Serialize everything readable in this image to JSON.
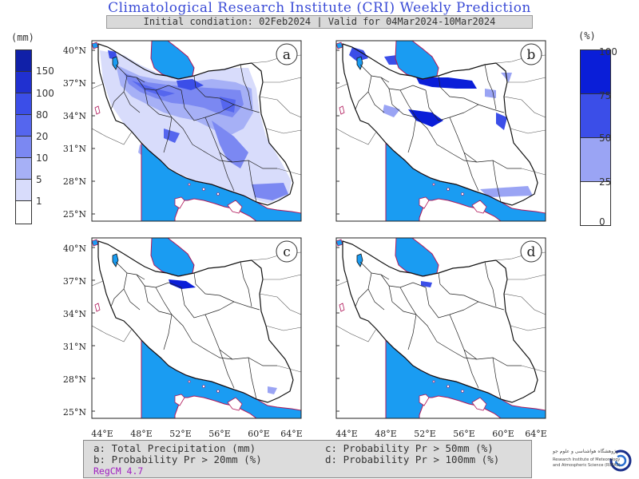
{
  "header": {
    "title": "Climatological Research Institute (CRI) Weekly Prediction",
    "subtitle": "Initial condiation: 02Feb2024 | Valid for 04Mar2024-10Mar2024"
  },
  "colorbar_precip": {
    "unit": "(mm)",
    "levels": [
      "150",
      "100",
      "80",
      "20",
      "10",
      "5",
      "1"
    ],
    "colors": [
      "#1020a8",
      "#2030d0",
      "#3b4ee8",
      "#5566ee",
      "#7b88f2",
      "#a6b0f6",
      "#d8dcfb",
      "#ffffff"
    ]
  },
  "colorbar_prob": {
    "unit": "(%)",
    "levels": [
      "100",
      "75",
      "50",
      "25",
      "0"
    ],
    "colors": [
      "#0a1ed8",
      "#3b4ee8",
      "#9aa4f4",
      "#ffffff"
    ]
  },
  "panels": [
    {
      "id": "a",
      "label": "a"
    },
    {
      "id": "b",
      "label": "b"
    },
    {
      "id": "c",
      "label": "c"
    },
    {
      "id": "d",
      "label": "d"
    }
  ],
  "axes": {
    "lat_labels": [
      "40°N",
      "37°N",
      "34°N",
      "31°N",
      "28°N",
      "25°N"
    ],
    "lon_labels": [
      "44°E",
      "48°E",
      "52°E",
      "56°E",
      "60°E",
      "64°E"
    ]
  },
  "legend": {
    "a": "a: Total Precipitation (mm)",
    "b": "b: Probability Pr > 20mm (%)",
    "c": "c: Probability Pr > 50mm (%)",
    "d": "d: Probability Pr > 100mm (%)",
    "model": "RegCM 4.7"
  },
  "logo": {
    "name_fa": "پژوهشگاه هواشناسی و علوم جو",
    "name_en_1": "Research Institute of Meteorology",
    "name_en_2": "and Atmospheric Science (RIMAS)"
  },
  "colors": {
    "sea": "#1a9cf2",
    "coast": "#b0185a",
    "title": "#3a4bd6"
  }
}
